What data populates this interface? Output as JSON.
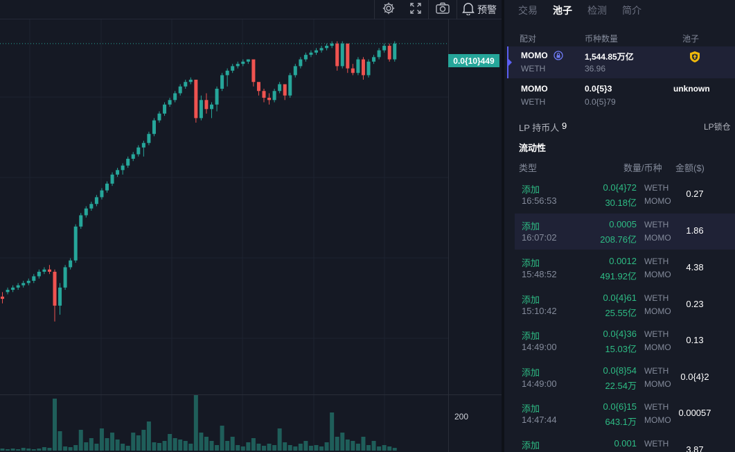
{
  "toolbar": {
    "settings_icon": "gear-icon",
    "fullscreen_icon": "expand-icon",
    "snapshot_icon": "camera-icon",
    "alert_icon": "bell-icon",
    "alert_label": "预警"
  },
  "chart": {
    "last_price_label": "0.0{10}449",
    "volume_axis_label": "200",
    "up_color": "#26a69a",
    "down_color": "#ef5350"
  },
  "chart_data": {
    "type": "candlestick",
    "series": [
      {
        "name": "price",
        "ohlc": [
          [
            76,
            78,
            73,
            75
          ],
          [
            78,
            80,
            77,
            79
          ],
          [
            79,
            81,
            78,
            80
          ],
          [
            80,
            82,
            79,
            81
          ],
          [
            81,
            83,
            80,
            82
          ],
          [
            82,
            84,
            81,
            83
          ],
          [
            83,
            86,
            82,
            85
          ],
          [
            85,
            88,
            84,
            87
          ],
          [
            87,
            89,
            86,
            88
          ],
          [
            88,
            90,
            86,
            87
          ],
          [
            87,
            88,
            65,
            72
          ],
          [
            72,
            82,
            68,
            80
          ],
          [
            80,
            90,
            79,
            89
          ],
          [
            89,
            93,
            88,
            92
          ],
          [
            92,
            108,
            91,
            107
          ],
          [
            107,
            113,
            106,
            112
          ],
          [
            112,
            116,
            111,
            115
          ],
          [
            115,
            118,
            114,
            117
          ],
          [
            117,
            121,
            116,
            120
          ],
          [
            120,
            124,
            119,
            123
          ],
          [
            123,
            127,
            122,
            126
          ],
          [
            126,
            131,
            125,
            130
          ],
          [
            130,
            133,
            129,
            132
          ],
          [
            132,
            135,
            130,
            134
          ],
          [
            134,
            138,
            133,
            137
          ],
          [
            137,
            140,
            136,
            139
          ],
          [
            139,
            143,
            138,
            142
          ],
          [
            142,
            145,
            138,
            144
          ],
          [
            144,
            149,
            143,
            148
          ],
          [
            148,
            155,
            147,
            154
          ],
          [
            154,
            158,
            153,
            157
          ],
          [
            157,
            162,
            156,
            161
          ],
          [
            161,
            164,
            160,
            163
          ],
          [
            163,
            167,
            162,
            166
          ],
          [
            166,
            170,
            165,
            169
          ],
          [
            169,
            172,
            168,
            171
          ],
          [
            171,
            173,
            170,
            172
          ],
          [
            172,
            171,
            153,
            155
          ],
          [
            155,
            165,
            154,
            163
          ],
          [
            163,
            166,
            157,
            159
          ],
          [
            159,
            162,
            155,
            161
          ],
          [
            161,
            169,
            158,
            168
          ],
          [
            168,
            175,
            167,
            174
          ],
          [
            174,
            177,
            169,
            176
          ],
          [
            176,
            179,
            175,
            178
          ],
          [
            178,
            180,
            177,
            179
          ],
          [
            179,
            181,
            178,
            180
          ],
          [
            180,
            181,
            179,
            181
          ],
          [
            181,
            180,
            169,
            171
          ],
          [
            171,
            170,
            165,
            167
          ],
          [
            167,
            168,
            162,
            164
          ],
          [
            164,
            166,
            161,
            163
          ],
          [
            163,
            168,
            162,
            167
          ],
          [
            167,
            171,
            166,
            170
          ],
          [
            170,
            170,
            163,
            165
          ],
          [
            165,
            175,
            164,
            174
          ],
          [
            174,
            179,
            173,
            178
          ],
          [
            178,
            182,
            177,
            181
          ],
          [
            181,
            184,
            180,
            183
          ],
          [
            183,
            185,
            182,
            184
          ],
          [
            184,
            186,
            183,
            185
          ],
          [
            185,
            187,
            184,
            186
          ],
          [
            186,
            188,
            185,
            187
          ],
          [
            187,
            189,
            186,
            188
          ],
          [
            188,
            189,
            176,
            178
          ],
          [
            178,
            189,
            177,
            188
          ],
          [
            188,
            187,
            175,
            177
          ],
          [
            177,
            179,
            174,
            175
          ],
          [
            175,
            182,
            174,
            181
          ],
          [
            181,
            182,
            172,
            174
          ],
          [
            174,
            181,
            173,
            180
          ],
          [
            180,
            183,
            179,
            182
          ],
          [
            182,
            186,
            181,
            185
          ],
          [
            185,
            188,
            184,
            187
          ],
          [
            187,
            188,
            180,
            181
          ],
          [
            181,
            189,
            180,
            188
          ]
        ]
      },
      {
        "name": "volume",
        "values": [
          3,
          2,
          3,
          2,
          4,
          3,
          2,
          3,
          5,
          4,
          75,
          28,
          6,
          5,
          8,
          30,
          12,
          18,
          10,
          32,
          18,
          26,
          16,
          10,
          7,
          26,
          22,
          30,
          42,
          12,
          11,
          14,
          24,
          18,
          16,
          14,
          10,
          80,
          26,
          20,
          14,
          8,
          36,
          14,
          20,
          8,
          6,
          12,
          18,
          10,
          7,
          10,
          8,
          32,
          12,
          8,
          6,
          10,
          14,
          7,
          8,
          6,
          12,
          55,
          20,
          26,
          16,
          14,
          10,
          20,
          8,
          14,
          6,
          8,
          6,
          4
        ]
      }
    ]
  },
  "panel": {
    "tabs": [
      {
        "label": "交易",
        "active": false
      },
      {
        "label": "池子",
        "active": true
      },
      {
        "label": "检测",
        "active": false
      },
      {
        "label": "简介",
        "active": false
      }
    ],
    "pool_headers": {
      "pair": "配对",
      "amount": "币种数量",
      "pool": "池子"
    },
    "pools": [
      {
        "base": "MOMO",
        "quote": "WETH",
        "amount_base": "1,544.85万亿",
        "amount_quote": "36.96",
        "pool": "",
        "pool_icon": "shield-icon",
        "lock_icon": "lock-badge-icon",
        "selected": true
      },
      {
        "base": "MOMO",
        "quote": "WETH",
        "amount_base": "0.0{5}3",
        "amount_quote": "0.0{5}79",
        "pool": "unknown",
        "selected": false
      }
    ],
    "lp_holders_label": "LP 持币人",
    "lp_holders_count": "9",
    "lp_lock_label": "LP锁仓",
    "liquidity_title": "流动性",
    "liq_headers": {
      "type": "类型",
      "amount": "数量/币种",
      "usd": "金额($)"
    },
    "liquidity": [
      {
        "type": "添加",
        "time": "16:56:53",
        "weth": "0.0{4}72",
        "momo": "30.18亿",
        "weth_sym": "WETH",
        "momo_sym": "MOMO",
        "usd": "0.27"
      },
      {
        "type": "添加",
        "time": "16:07:02",
        "weth": "0.0005",
        "momo": "208.76亿",
        "weth_sym": "WETH",
        "momo_sym": "MOMO",
        "usd": "1.86"
      },
      {
        "type": "添加",
        "time": "15:48:52",
        "weth": "0.0012",
        "momo": "491.92亿",
        "weth_sym": "WETH",
        "momo_sym": "MOMO",
        "usd": "4.38"
      },
      {
        "type": "添加",
        "time": "15:10:42",
        "weth": "0.0{4}61",
        "momo": "25.55亿",
        "weth_sym": "WETH",
        "momo_sym": "MOMO",
        "usd": "0.23"
      },
      {
        "type": "添加",
        "time": "14:49:00",
        "weth": "0.0{4}36",
        "momo": "15.03亿",
        "weth_sym": "WETH",
        "momo_sym": "MOMO",
        "usd": "0.13"
      },
      {
        "type": "添加",
        "time": "14:49:00",
        "weth": "0.0{8}54",
        "momo": "22.54万",
        "weth_sym": "WETH",
        "momo_sym": "MOMO",
        "usd": "0.0{4}2"
      },
      {
        "type": "添加",
        "time": "14:47:44",
        "weth": "0.0{6}15",
        "momo": "643.1万",
        "weth_sym": "WETH",
        "momo_sym": "MOMO",
        "usd": "0.00057"
      },
      {
        "type": "添加",
        "time": "",
        "weth": "0.001",
        "momo": "",
        "weth_sym": "WETH",
        "momo_sym": "",
        "usd": "3.87"
      }
    ]
  }
}
